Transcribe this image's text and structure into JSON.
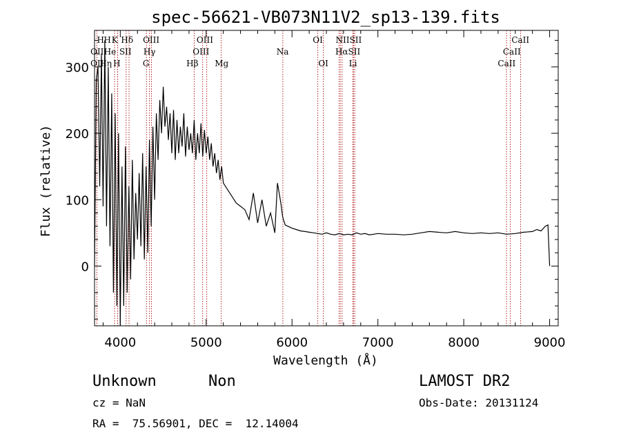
{
  "chart_data": {
    "type": "line",
    "title": "spec-56621-VB073N11V2_sp13-139.fits",
    "xlabel": "Wavelength (Å)",
    "ylabel": "Flux (relative)",
    "xlim": [
      3700,
      9100
    ],
    "ylim": [
      -90,
      355
    ],
    "x_ticks": [
      4000,
      5000,
      6000,
      7000,
      8000,
      9000
    ],
    "y_ticks": [
      0,
      100,
      200,
      300
    ],
    "line_color": "#000000",
    "marker_color": "#b22222",
    "series": [
      {
        "x": [
          3700,
          3720,
          3740,
          3760,
          3780,
          3800,
          3820,
          3840,
          3860,
          3880,
          3900,
          3920,
          3940,
          3960,
          3980,
          4000,
          4020,
          4040,
          4060,
          4080,
          4100,
          4120,
          4140,
          4160,
          4180,
          4200,
          4220,
          4240,
          4260,
          4280,
          4300,
          4320,
          4340,
          4360,
          4380,
          4400,
          4420,
          4440,
          4460,
          4480,
          4500,
          4520,
          4540,
          4560,
          4580,
          4600,
          4620,
          4640,
          4660,
          4680,
          4700,
          4720,
          4740,
          4760,
          4780,
          4800,
          4820,
          4840,
          4860,
          4880,
          4900,
          4920,
          4940,
          4960,
          4980,
          5000,
          5020,
          5040,
          5060,
          5080,
          5100,
          5120,
          5140,
          5160,
          5180,
          5200,
          5250,
          5300,
          5350,
          5400,
          5450,
          5500,
          5550,
          5600,
          5650,
          5700,
          5750,
          5800,
          5830,
          5850,
          5870,
          5890,
          5900,
          5920,
          5950,
          6000,
          6050,
          6100,
          6150,
          6200,
          6250,
          6300,
          6350,
          6400,
          6450,
          6500,
          6550,
          6600,
          6650,
          6700,
          6750,
          6800,
          6850,
          6900,
          6950,
          7000,
          7100,
          7200,
          7300,
          7400,
          7500,
          7600,
          7700,
          7800,
          7900,
          8000,
          8100,
          8200,
          8300,
          8400,
          8500,
          8600,
          8700,
          8800,
          8850,
          8900,
          8950,
          8980,
          9000
        ],
        "y": [
          0,
          280,
          300,
          120,
          320,
          90,
          340,
          60,
          300,
          30,
          260,
          -40,
          230,
          -60,
          200,
          -90,
          150,
          -60,
          180,
          -40,
          120,
          -20,
          160,
          10,
          110,
          40,
          140,
          30,
          170,
          10,
          150,
          20,
          190,
          60,
          210,
          100,
          230,
          160,
          250,
          200,
          270,
          210,
          240,
          190,
          230,
          170,
          235,
          160,
          220,
          170,
          210,
          180,
          230,
          165,
          210,
          175,
          200,
          170,
          220,
          160,
          200,
          170,
          215,
          165,
          205,
          170,
          195,
          160,
          185,
          150,
          170,
          140,
          160,
          130,
          150,
          125,
          115,
          105,
          95,
          90,
          85,
          70,
          110,
          65,
          100,
          60,
          80,
          50,
          125,
          110,
          95,
          75,
          70,
          62,
          60,
          57,
          55,
          53,
          52,
          51,
          50,
          49,
          48,
          50,
          48,
          47,
          49,
          47,
          48,
          47,
          50,
          48,
          49,
          47,
          48,
          49,
          48,
          48,
          47,
          48,
          50,
          52,
          51,
          50,
          52,
          50,
          49,
          50,
          49,
          50,
          48,
          49,
          51,
          52,
          55,
          53,
          60,
          62,
          0
        ]
      }
    ],
    "lines": [
      {
        "name": "Hα",
        "x": 6563
      },
      {
        "name": "Hβ",
        "x": 4861
      },
      {
        "name": "Hγ",
        "x": 4340
      },
      {
        "name": "Hδ",
        "x": 4102
      },
      {
        "name": "Hε",
        "x": 3970
      },
      {
        "name": "H",
        "x": 3968
      },
      {
        "name": "K",
        "x": 3934
      },
      {
        "name": "G",
        "x": 4305
      },
      {
        "name": "Mg",
        "x": 5175
      },
      {
        "name": "Na",
        "x": 5893
      },
      {
        "name": "OII",
        "x": 3727
      },
      {
        "name": "OIII",
        "x": 4363
      },
      {
        "name": "OIII",
        "x": 4959
      },
      {
        "name": "OIII",
        "x": 5007
      },
      {
        "name": "OI",
        "x": 6300
      },
      {
        "name": "OI",
        "x": 6364
      },
      {
        "name": "NII",
        "x": 6548
      },
      {
        "name": "NII",
        "x": 6583
      },
      {
        "name": "SII",
        "x": 6716
      },
      {
        "name": "SII",
        "x": 6731
      },
      {
        "name": "SII",
        "x": 4068
      },
      {
        "name": "Li",
        "x": 6708
      },
      {
        "name": "CaII",
        "x": 8498
      },
      {
        "name": "CaII",
        "x": 8542
      },
      {
        "name": "CaII",
        "x": 8662
      }
    ],
    "grid": false
  },
  "labels": {
    "line_labels": [
      {
        "text": "H",
        "x": 3770,
        "row": 1
      },
      {
        "text": "H",
        "x": 3850,
        "row": 1
      },
      {
        "text": "K",
        "x": 3935,
        "row": 1
      },
      {
        "text": "Hδ",
        "x": 4080,
        "row": 1
      },
      {
        "text": "OIII",
        "x": 4360,
        "row": 1
      },
      {
        "text": "OIII",
        "x": 4985,
        "row": 1
      },
      {
        "text": "OI",
        "x": 6300,
        "row": 1
      },
      {
        "text": "NIISII",
        "x": 6660,
        "row": 1
      },
      {
        "text": "CaII",
        "x": 8660,
        "row": 1
      },
      {
        "text": "OII",
        "x": 3730,
        "row": 2
      },
      {
        "text": "He",
        "x": 3880,
        "row": 2
      },
      {
        "text": "SII",
        "x": 4060,
        "row": 2
      },
      {
        "text": "Hγ",
        "x": 4340,
        "row": 2
      },
      {
        "text": "OIII",
        "x": 4940,
        "row": 2
      },
      {
        "text": "Na",
        "x": 5890,
        "row": 2
      },
      {
        "text": "HαSII",
        "x": 6650,
        "row": 2
      },
      {
        "text": "CaII",
        "x": 8560,
        "row": 2
      },
      {
        "text": "OII",
        "x": 3730,
        "row": 3
      },
      {
        "text": "Hη",
        "x": 3830,
        "row": 3
      },
      {
        "text": "H",
        "x": 3960,
        "row": 3
      },
      {
        "text": "G",
        "x": 4300,
        "row": 3
      },
      {
        "text": "Hβ",
        "x": 4840,
        "row": 3
      },
      {
        "text": "Mg",
        "x": 5180,
        "row": 3
      },
      {
        "text": "OI",
        "x": 6365,
        "row": 3
      },
      {
        "text": "Li",
        "x": 6710,
        "row": 3
      },
      {
        "text": "CaII",
        "x": 8500,
        "row": 3
      }
    ]
  },
  "info": {
    "class": "Unknown",
    "subclass": "Non",
    "survey": "LAMOST DR2",
    "cz": "cz = NaN",
    "obs_date": "Obs-Date: 20131124",
    "coords": "RA =  75.56901, DEC =  12.14004"
  }
}
